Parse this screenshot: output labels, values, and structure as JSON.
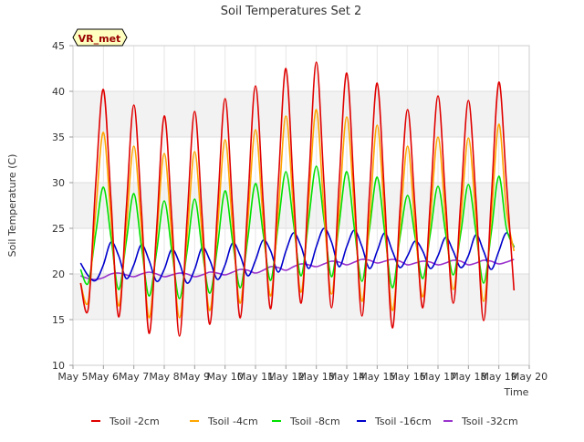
{
  "chart_data": {
    "type": "line",
    "title": "Soil Temperatures Set 2",
    "xlabel": "Time",
    "ylabel": "Soil Temperature (C)",
    "ylim": [
      10,
      45
    ],
    "yticks": [
      10,
      15,
      20,
      25,
      30,
      35,
      40,
      45
    ],
    "xlim": [
      5,
      20
    ],
    "xticks": [
      {
        "value": 5,
        "label": "May 5"
      },
      {
        "value": 6,
        "label": "May 6"
      },
      {
        "value": 7,
        "label": "May 7"
      },
      {
        "value": 8,
        "label": "May 8"
      },
      {
        "value": 9,
        "label": "May 9"
      },
      {
        "value": 10,
        "label": "May 10"
      },
      {
        "value": 11,
        "label": "May 11"
      },
      {
        "value": 12,
        "label": "May 12"
      },
      {
        "value": 13,
        "label": "May 13"
      },
      {
        "value": 14,
        "label": "May 14"
      },
      {
        "value": 15,
        "label": "May 15"
      },
      {
        "value": 16,
        "label": "May 16"
      },
      {
        "value": 17,
        "label": "May 17"
      },
      {
        "value": 18,
        "label": "May 18"
      },
      {
        "value": 19,
        "label": "May 19"
      },
      {
        "value": 20,
        "label": "May 20"
      }
    ],
    "grid": true,
    "background_bands": "alternating light gray",
    "legend_position": "bottom",
    "annotation": "VR_met",
    "series": [
      {
        "name": "Tsoil -2cm",
        "color": "#e00000",
        "x": [
          5.25,
          5.5,
          5.75,
          6.0,
          6.25,
          6.5,
          6.75,
          7.0,
          7.25,
          7.5,
          7.75,
          8.0,
          8.25,
          8.5,
          8.75,
          9.0,
          9.25,
          9.5,
          9.75,
          10.0,
          10.25,
          10.5,
          10.75,
          11.0,
          11.25,
          11.5,
          11.75,
          12.0,
          12.25,
          12.5,
          12.75,
          13.0,
          13.25,
          13.5,
          13.75,
          14.0,
          14.25,
          14.5,
          14.75,
          15.0,
          15.25,
          15.5,
          15.75,
          16.0,
          16.25,
          16.5,
          16.75,
          17.0,
          17.25,
          17.5,
          17.75,
          18.0,
          18.25,
          18.5,
          18.75,
          19.0,
          19.25,
          19.5
        ],
        "y": [
          19.0,
          16.2,
          30.0,
          40.2,
          28.0,
          15.3,
          27.0,
          38.5,
          27.0,
          13.5,
          25.0,
          37.3,
          26.0,
          13.2,
          26.0,
          37.8,
          26.0,
          14.5,
          27.0,
          39.2,
          27.0,
          15.2,
          28.0,
          40.6,
          28.0,
          16.2,
          30.0,
          42.5,
          29.0,
          16.8,
          30.0,
          43.2,
          30.0,
          16.3,
          30.0,
          42.0,
          29.0,
          15.4,
          29.0,
          40.9,
          28.0,
          14.1,
          27.0,
          38.0,
          27.0,
          16.3,
          28.0,
          39.5,
          28.0,
          16.8,
          28.0,
          39.0,
          28.0,
          14.9,
          28.0,
          41.0,
          30.0,
          18.2
        ]
      },
      {
        "name": "Tsoil -4cm",
        "color": "#ffa500",
        "x": [
          5.25,
          5.5,
          5.75,
          6.0,
          6.25,
          6.5,
          6.75,
          7.0,
          7.25,
          7.5,
          7.75,
          8.0,
          8.25,
          8.5,
          8.75,
          9.0,
          9.25,
          9.5,
          9.75,
          10.0,
          10.25,
          10.5,
          10.75,
          11.0,
          11.25,
          11.5,
          11.75,
          12.0,
          12.25,
          12.5,
          12.75,
          13.0,
          13.25,
          13.5,
          13.75,
          14.0,
          14.25,
          14.5,
          14.75,
          15.0,
          15.25,
          15.5,
          15.75,
          16.0,
          16.25,
          16.5,
          16.75,
          17.0,
          17.25,
          17.5,
          17.75,
          18.0,
          18.25,
          18.5,
          18.75,
          19.0,
          19.25,
          19.5
        ],
        "y": [
          19.0,
          17.0,
          27.0,
          35.5,
          26.0,
          16.5,
          25.0,
          34.0,
          25.0,
          15.2,
          24.0,
          33.2,
          24.0,
          15.2,
          24.0,
          33.4,
          24.0,
          16.0,
          25.0,
          34.7,
          25.0,
          16.8,
          26.0,
          35.8,
          26.0,
          17.6,
          27.0,
          37.3,
          27.0,
          18.0,
          28.0,
          38.0,
          27.0,
          17.8,
          27.0,
          37.2,
          27.0,
          17.0,
          26.0,
          36.3,
          26.0,
          16.0,
          25.0,
          34.0,
          25.0,
          17.5,
          26.0,
          35.0,
          26.0,
          18.3,
          26.0,
          34.9,
          26.0,
          17.0,
          26.0,
          36.4,
          27.0,
          22.5
        ]
      },
      {
        "name": "Tsoil -8cm",
        "color": "#00e000",
        "x": [
          5.25,
          5.5,
          5.75,
          6.0,
          6.25,
          6.5,
          6.75,
          7.0,
          7.25,
          7.5,
          7.75,
          8.0,
          8.25,
          8.5,
          8.75,
          9.0,
          9.25,
          9.5,
          9.75,
          10.0,
          10.25,
          10.5,
          10.75,
          11.0,
          11.25,
          11.5,
          11.75,
          12.0,
          12.25,
          12.5,
          12.75,
          13.0,
          13.25,
          13.5,
          13.75,
          14.0,
          14.25,
          14.5,
          14.75,
          15.0,
          15.25,
          15.5,
          15.75,
          16.0,
          16.25,
          16.5,
          16.75,
          17.0,
          17.25,
          17.5,
          17.75,
          18.0,
          18.25,
          18.5,
          18.75,
          19.0,
          19.25,
          19.5
        ],
        "y": [
          20.5,
          19.0,
          24.5,
          29.5,
          24.0,
          18.3,
          23.5,
          28.8,
          23.0,
          17.6,
          22.5,
          28.0,
          22.5,
          17.3,
          22.5,
          28.2,
          22.5,
          17.9,
          23.0,
          29.1,
          23.5,
          18.5,
          24.0,
          29.9,
          24.5,
          19.3,
          25.5,
          31.2,
          25.5,
          19.8,
          26.0,
          31.8,
          26.0,
          19.7,
          25.5,
          31.2,
          25.0,
          19.2,
          25.0,
          30.6,
          24.5,
          18.5,
          24.0,
          28.6,
          24.0,
          19.5,
          24.5,
          29.6,
          24.5,
          19.9,
          24.5,
          29.8,
          24.5,
          19.0,
          24.5,
          30.7,
          25.0,
          23.0
        ]
      },
      {
        "name": "Tsoil -16cm",
        "color": "#0000cc",
        "x": [
          5.25,
          5.5,
          5.75,
          6.0,
          6.25,
          6.5,
          6.75,
          7.0,
          7.25,
          7.5,
          7.75,
          8.0,
          8.25,
          8.5,
          8.75,
          9.0,
          9.25,
          9.5,
          9.75,
          10.0,
          10.25,
          10.5,
          10.75,
          11.0,
          11.25,
          11.5,
          11.75,
          12.0,
          12.25,
          12.5,
          12.75,
          13.0,
          13.25,
          13.5,
          13.75,
          14.0,
          14.25,
          14.5,
          14.75,
          15.0,
          15.25,
          15.5,
          15.75,
          16.0,
          16.25,
          16.5,
          16.75,
          17.0,
          17.25,
          17.5,
          17.75,
          18.0,
          18.25,
          18.5,
          18.75,
          19.0,
          19.25,
          19.5
        ],
        "y": [
          21.2,
          19.8,
          19.3,
          21.0,
          23.5,
          22.0,
          19.5,
          21.0,
          23.2,
          21.5,
          19.2,
          20.5,
          22.7,
          21.2,
          19.0,
          20.5,
          22.9,
          21.5,
          19.4,
          21.0,
          23.4,
          22.0,
          19.8,
          21.5,
          23.7,
          22.5,
          20.2,
          22.5,
          24.5,
          23.0,
          20.6,
          23.0,
          25.0,
          23.5,
          20.8,
          23.0,
          24.8,
          23.0,
          20.6,
          22.5,
          24.5,
          22.5,
          20.7,
          22.0,
          23.6,
          22.5,
          20.6,
          22.0,
          24.0,
          22.5,
          20.7,
          22.0,
          24.3,
          22.5,
          20.5,
          22.5,
          24.5,
          22.9
        ]
      },
      {
        "name": "Tsoil -32cm",
        "color": "#9933cc",
        "x": [
          5.25,
          5.5,
          5.75,
          6.0,
          6.25,
          6.5,
          6.75,
          7.0,
          7.25,
          7.5,
          7.75,
          8.0,
          8.25,
          8.5,
          8.75,
          9.0,
          9.25,
          9.5,
          9.75,
          10.0,
          10.25,
          10.5,
          10.75,
          11.0,
          11.25,
          11.5,
          11.75,
          12.0,
          12.25,
          12.5,
          12.75,
          13.0,
          13.25,
          13.5,
          13.75,
          14.0,
          14.25,
          14.5,
          14.75,
          15.0,
          15.25,
          15.5,
          15.75,
          16.0,
          16.25,
          16.5,
          16.75,
          17.0,
          17.25,
          17.5,
          17.75,
          18.0,
          18.25,
          18.5,
          18.75,
          19.0,
          19.25,
          19.5
        ],
        "y": [
          19.8,
          19.5,
          19.4,
          19.6,
          20.0,
          20.1,
          19.9,
          19.7,
          20.0,
          20.2,
          20.0,
          19.7,
          19.9,
          20.1,
          20.0,
          19.7,
          19.9,
          20.2,
          20.1,
          19.9,
          20.2,
          20.5,
          20.4,
          20.1,
          20.4,
          20.8,
          20.7,
          20.4,
          20.8,
          21.1,
          21.0,
          20.8,
          21.1,
          21.4,
          21.3,
          21.0,
          21.3,
          21.6,
          21.5,
          21.2,
          21.4,
          21.6,
          21.4,
          21.0,
          21.2,
          21.4,
          21.3,
          21.0,
          21.2,
          21.5,
          21.4,
          21.0,
          21.2,
          21.5,
          21.4,
          21.1,
          21.3,
          21.6
        ]
      }
    ]
  }
}
